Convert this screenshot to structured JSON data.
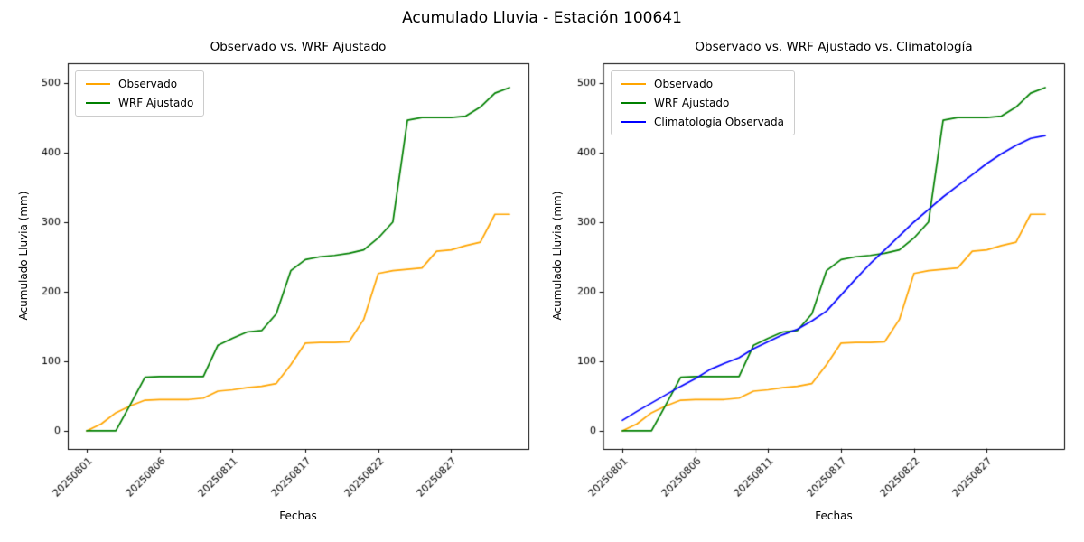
{
  "figure": {
    "suptitle": "Acumulado Lluvia - Estación 100641",
    "background_color": "#ffffff",
    "text_color": "#000000"
  },
  "chart_data": [
    {
      "type": "line",
      "title": "Observado vs. WRF Ajustado",
      "xlabel": "Fechas",
      "ylabel": "Acumulado Lluvia (mm)",
      "grid": false,
      "legend_position": "upper left",
      "x": [
        "20250801",
        "20250802",
        "20250803",
        "20250804",
        "20250805",
        "20250806",
        "20250807",
        "20250808",
        "20250809",
        "20250810",
        "20250811",
        "20250813",
        "20250814",
        "20250815",
        "20250816",
        "20250817",
        "20250818",
        "20250819",
        "20250820",
        "20250821",
        "20250822",
        "20250823",
        "20250824",
        "20250825",
        "20250826",
        "20250827",
        "20250828",
        "20250829",
        "20250830",
        "20250831"
      ],
      "xtick_indices": [
        0,
        5,
        10,
        15,
        20,
        25
      ],
      "xtick_labels": [
        "20250801",
        "20250806",
        "20250811",
        "20250817",
        "20250822",
        "20250827"
      ],
      "yticks": [
        0,
        100,
        200,
        300,
        400,
        500
      ],
      "xlim": [
        -1.3,
        30.3
      ],
      "ylim": [
        -26,
        528
      ],
      "series": [
        {
          "name": "Observado",
          "color": "#FFA500",
          "values": [
            0,
            10,
            26,
            36,
            44,
            45,
            45,
            45,
            47,
            57,
            59,
            62,
            64,
            68,
            95,
            126,
            127,
            127,
            128,
            160,
            226,
            230,
            232,
            234,
            258,
            260,
            266,
            271,
            311,
            311
          ]
        },
        {
          "name": "WRF Ajustado",
          "color": "#008000",
          "values": [
            0,
            0,
            0,
            38,
            77,
            78,
            78,
            78,
            78,
            123,
            133,
            142,
            144,
            168,
            230,
            246,
            250,
            252,
            255,
            260,
            277,
            300,
            446,
            450,
            450,
            450,
            452,
            465,
            485,
            493
          ]
        }
      ]
    },
    {
      "type": "line",
      "title": "Observado vs. WRF Ajustado vs. Climatología",
      "xlabel": "Fechas",
      "ylabel": "Acumulado Lluvia (mm)",
      "grid": false,
      "legend_position": "upper left",
      "x": [
        "20250801",
        "20250802",
        "20250803",
        "20250804",
        "20250805",
        "20250806",
        "20250807",
        "20250808",
        "20250809",
        "20250810",
        "20250811",
        "20250813",
        "20250814",
        "20250815",
        "20250816",
        "20250817",
        "20250818",
        "20250819",
        "20250820",
        "20250821",
        "20250822",
        "20250823",
        "20250824",
        "20250825",
        "20250826",
        "20250827",
        "20250828",
        "20250829",
        "20250830",
        "20250831"
      ],
      "xtick_indices": [
        0,
        5,
        10,
        15,
        20,
        25
      ],
      "xtick_labels": [
        "20250801",
        "20250806",
        "20250811",
        "20250817",
        "20250822",
        "20250827"
      ],
      "yticks": [
        0,
        100,
        200,
        300,
        400,
        500
      ],
      "xlim": [
        -1.3,
        30.3
      ],
      "ylim": [
        -26,
        528
      ],
      "series": [
        {
          "name": "Observado",
          "color": "#FFA500",
          "values": [
            0,
            10,
            26,
            36,
            44,
            45,
            45,
            45,
            47,
            57,
            59,
            62,
            64,
            68,
            95,
            126,
            127,
            127,
            128,
            160,
            226,
            230,
            232,
            234,
            258,
            260,
            266,
            271,
            311,
            311
          ]
        },
        {
          "name": "WRF Ajustado",
          "color": "#008000",
          "values": [
            0,
            0,
            0,
            38,
            77,
            78,
            78,
            78,
            78,
            123,
            133,
            142,
            144,
            168,
            230,
            246,
            250,
            252,
            255,
            260,
            277,
            300,
            446,
            450,
            450,
            450,
            452,
            465,
            485,
            493
          ]
        },
        {
          "name": "Climatología Observada",
          "color": "#0000FF",
          "values": [
            15,
            28,
            40,
            52,
            64,
            75,
            88,
            97,
            105,
            118,
            128,
            138,
            146,
            158,
            172,
            195,
            218,
            240,
            260,
            280,
            300,
            318,
            336,
            352,
            368,
            384,
            398,
            410,
            420,
            424
          ]
        }
      ]
    }
  ]
}
